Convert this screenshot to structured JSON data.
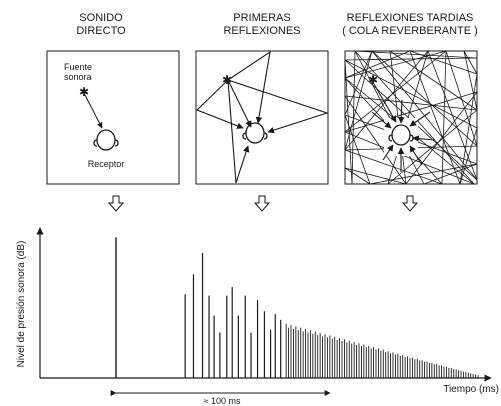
{
  "panels": {
    "direct": {
      "title_line1": "SONIDO",
      "title_line2": "DIRECTO",
      "source_label_line1": "Fuente",
      "source_label_line2": "sonora",
      "receiver_label": "Receptor"
    },
    "early": {
      "title_line1": "PRIMERAS",
      "title_line2": "REFLEXIONES"
    },
    "late": {
      "title_line1": "REFLEXIONES  TARDIAS",
      "title_line2": "( COLA REVERBERANTE )"
    }
  },
  "chart": {
    "ylabel": "Nivel de presión sonora (dB)",
    "xlabel": "Tiempo (ms)",
    "interval_label": "≈ 100 ms"
  },
  "chart_data": {
    "type": "bar",
    "description_units": "relative level, 0-1",
    "direct_sound": {
      "t": 0,
      "level": 0.99
    },
    "early_reflections": [
      {
        "t": 0.191,
        "level": 0.59
      },
      {
        "t": 0.214,
        "level": 0.73
      },
      {
        "t": 0.239,
        "level": 0.88
      },
      {
        "t": 0.257,
        "level": 0.58
      },
      {
        "t": 0.271,
        "level": 0.44
      },
      {
        "t": 0.287,
        "level": 0.32
      },
      {
        "t": 0.306,
        "level": 0.58
      },
      {
        "t": 0.321,
        "level": 0.64
      },
      {
        "t": 0.338,
        "level": 0.44
      },
      {
        "t": 0.357,
        "level": 0.58
      },
      {
        "t": 0.373,
        "level": 0.32
      },
      {
        "t": 0.391,
        "level": 0.55
      },
      {
        "t": 0.41,
        "level": 0.47
      },
      {
        "t": 0.427,
        "level": 0.34
      },
      {
        "t": 0.44,
        "level": 0.45
      },
      {
        "t": 0.455,
        "level": 0.41
      }
    ],
    "late_tail": {
      "t_start": 0.47,
      "t_end": 1.0,
      "count": 80,
      "level_start": 0.37,
      "level_end": 0.02
    },
    "interval_marker": {
      "t_start": 0,
      "t_end": 0.455
    }
  }
}
